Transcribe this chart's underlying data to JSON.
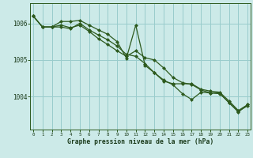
{
  "title": "Graphe pression niveau de la mer (hPa)",
  "background_color": "#cceae8",
  "grid_color": "#99cccc",
  "line_color": "#2d5a1e",
  "x_labels": [
    "0",
    "1",
    "2",
    "3",
    "4",
    "5",
    "6",
    "7",
    "8",
    "9",
    "10",
    "11",
    "12",
    "13",
    "14",
    "15",
    "16",
    "17",
    "18",
    "19",
    "20",
    "21",
    "22",
    "23"
  ],
  "y_ticks": [
    1004,
    1005,
    1006
  ],
  "ylim": [
    1003.1,
    1006.55
  ],
  "xlim": [
    -0.3,
    23.3
  ],
  "line1_x": [
    0,
    1,
    2,
    3,
    4,
    5,
    6,
    7,
    8,
    9,
    10,
    11,
    12,
    13,
    14,
    15,
    16,
    17,
    18,
    19,
    20,
    21,
    22,
    23
  ],
  "line1_y": [
    1006.2,
    1005.9,
    1005.9,
    1006.05,
    1006.05,
    1006.08,
    1005.95,
    1005.82,
    1005.7,
    1005.5,
    1005.05,
    1005.95,
    1004.85,
    1004.65,
    1004.42,
    1004.35,
    1004.35,
    1004.35,
    1004.2,
    1004.15,
    1004.12,
    1003.88,
    1003.62,
    1003.78
  ],
  "line2_x": [
    0,
    1,
    2,
    3,
    4,
    5,
    6,
    7,
    8,
    9,
    10,
    11,
    12,
    13,
    14,
    15,
    16,
    17,
    18,
    19,
    20,
    21,
    22,
    23
  ],
  "line2_y": [
    1006.2,
    1005.9,
    1005.9,
    1005.9,
    1005.85,
    1006.0,
    1005.82,
    1005.68,
    1005.55,
    1005.38,
    1005.15,
    1005.1,
    1004.9,
    1004.65,
    1004.45,
    1004.32,
    1004.08,
    1003.92,
    1004.12,
    1004.1,
    1004.08,
    1003.84,
    1003.6,
    1003.75
  ],
  "line3_x": [
    0,
    1,
    2,
    3,
    4,
    5,
    6,
    7,
    8,
    9,
    10,
    11,
    12,
    13,
    14,
    15,
    16,
    17,
    18,
    19,
    20,
    21,
    22,
    23
  ],
  "line3_y": [
    1006.2,
    1005.9,
    1005.9,
    1005.95,
    1005.88,
    1005.95,
    1005.78,
    1005.58,
    1005.42,
    1005.25,
    1005.1,
    1005.25,
    1005.06,
    1005.0,
    1004.78,
    1004.52,
    1004.38,
    1004.33,
    1004.18,
    1004.1,
    1004.1,
    1003.83,
    1003.58,
    1003.78
  ]
}
